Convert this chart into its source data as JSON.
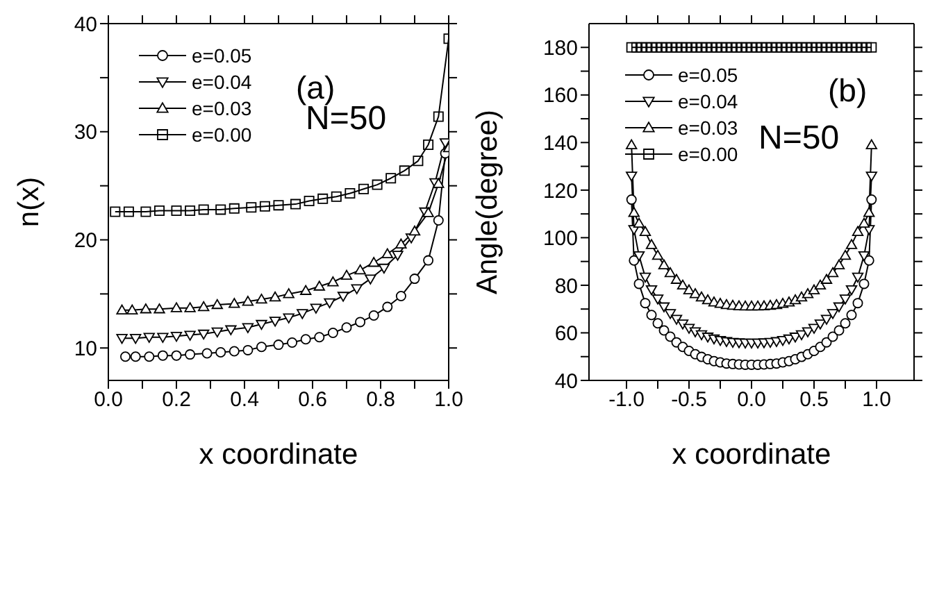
{
  "chart_data": [
    {
      "type": "line",
      "xlabel": "x coordinate",
      "ylabel": "n(x)",
      "xlim": [
        0,
        1
      ],
      "xticks": [
        {
          "value": 0,
          "label": "0.0"
        },
        {
          "value": 0.1,
          "label": null
        },
        {
          "value": 0.2,
          "label": "0.2"
        },
        {
          "value": 0.3,
          "label": null
        },
        {
          "value": 0.4,
          "label": "0.4"
        },
        {
          "value": 0.5,
          "label": null
        },
        {
          "value": 0.6,
          "label": "0.6"
        },
        {
          "value": 0.7,
          "label": null
        },
        {
          "value": 0.8,
          "label": "0.8"
        },
        {
          "value": 0.9,
          "label": null
        },
        {
          "value": 1,
          "label": "1.0"
        }
      ],
      "ylim": [
        7,
        40
      ],
      "yticks": [
        10,
        {
          "value": 15,
          "label": null
        },
        20,
        {
          "value": 25,
          "label": null
        },
        30,
        {
          "value": 35,
          "label": null
        },
        40
      ],
      "legend": "top left",
      "annotations": [
        "(a)",
        "N=50"
      ],
      "series": [
        {
          "name": "e=0.05",
          "color": "#000000",
          "marker": "circle",
          "x": [
            0.05,
            0.08,
            0.12,
            0.16,
            0.2,
            0.24,
            0.29,
            0.33,
            0.37,
            0.41,
            0.45,
            0.5,
            0.54,
            0.58,
            0.62,
            0.66,
            0.7,
            0.74,
            0.78,
            0.82,
            0.86,
            0.9,
            0.94,
            0.97,
            0.99
          ],
          "values": [
            9.2,
            9.2,
            9.2,
            9.3,
            9.3,
            9.4,
            9.5,
            9.6,
            9.7,
            9.8,
            10.1,
            10.3,
            10.5,
            10.8,
            11.0,
            11.4,
            11.9,
            12.4,
            13.0,
            13.8,
            14.8,
            16.4,
            18.1,
            21.8,
            28.0
          ]
        },
        {
          "name": "e=0.04",
          "color": "#000000",
          "marker": "triangle-down",
          "x": [
            0.04,
            0.08,
            0.12,
            0.16,
            0.2,
            0.24,
            0.28,
            0.32,
            0.36,
            0.41,
            0.45,
            0.49,
            0.53,
            0.57,
            0.61,
            0.65,
            0.69,
            0.73,
            0.77,
            0.81,
            0.85,
            0.89,
            0.93,
            0.96,
            0.99
          ],
          "values": [
            10.9,
            10.9,
            11.0,
            11.0,
            11.1,
            11.2,
            11.3,
            11.5,
            11.7,
            11.9,
            12.2,
            12.5,
            12.8,
            13.2,
            13.7,
            14.2,
            14.8,
            15.5,
            16.4,
            17.4,
            18.6,
            20.2,
            22.6,
            25.3,
            29.0
          ]
        },
        {
          "name": "e=0.03",
          "color": "#000000",
          "marker": "triangle",
          "x": [
            0.04,
            0.07,
            0.11,
            0.15,
            0.2,
            0.24,
            0.28,
            0.32,
            0.37,
            0.41,
            0.45,
            0.49,
            0.53,
            0.58,
            0.62,
            0.66,
            0.7,
            0.74,
            0.78,
            0.82,
            0.86,
            0.9,
            0.94,
            0.97,
            1.0
          ],
          "values": [
            13.5,
            13.5,
            13.6,
            13.6,
            13.7,
            13.7,
            13.8,
            14.0,
            14.1,
            14.3,
            14.5,
            14.7,
            15.0,
            15.3,
            15.7,
            16.1,
            16.7,
            17.2,
            17.9,
            18.7,
            19.6,
            20.8,
            22.5,
            25.2,
            28.5
          ]
        },
        {
          "name": "e=0.00",
          "color": "#000000",
          "marker": "square",
          "x": [
            0.02,
            0.06,
            0.11,
            0.15,
            0.2,
            0.24,
            0.28,
            0.33,
            0.37,
            0.42,
            0.46,
            0.5,
            0.55,
            0.59,
            0.63,
            0.67,
            0.71,
            0.75,
            0.79,
            0.83,
            0.87,
            0.91,
            0.94,
            0.97,
            1.0
          ],
          "values": [
            22.6,
            22.6,
            22.6,
            22.7,
            22.7,
            22.7,
            22.8,
            22.8,
            22.9,
            23.0,
            23.1,
            23.2,
            23.3,
            23.6,
            23.8,
            24.0,
            24.3,
            24.7,
            25.1,
            25.7,
            26.4,
            27.3,
            28.8,
            31.4,
            38.6
          ]
        }
      ]
    },
    {
      "type": "line",
      "xlabel": "x coordinate",
      "ylabel": "Angle(degree)",
      "xlim": [
        -1.3,
        1.3
      ],
      "xticks": [
        {
          "value": -1,
          "label": "-1.0"
        },
        {
          "value": -0.75,
          "label": null
        },
        {
          "value": -0.5,
          "label": "-0.5"
        },
        {
          "value": -0.25,
          "label": null
        },
        {
          "value": 0,
          "label": "0.0"
        },
        {
          "value": 0.25,
          "label": null
        },
        {
          "value": 0.5,
          "label": "0.5"
        },
        {
          "value": 0.75,
          "label": null
        },
        {
          "value": 1,
          "label": "1.0"
        }
      ],
      "ylim": [
        40,
        190
      ],
      "yticks": [
        40,
        {
          "value": 50,
          "label": null
        },
        60,
        {
          "value": 70,
          "label": null
        },
        80,
        {
          "value": 90,
          "label": null
        },
        100,
        {
          "value": 110,
          "label": null
        },
        120,
        {
          "value": 130,
          "label": null
        },
        140,
        {
          "value": 150,
          "label": null
        },
        160,
        {
          "value": 170,
          "label": null
        },
        180
      ],
      "legend": "top left",
      "annotations": [
        "(b)",
        "N=50"
      ],
      "series": [
        {
          "name": "e=0.05",
          "color": "#000000",
          "marker": "circle",
          "x": [
            -0.96,
            -0.94,
            -0.9,
            -0.85,
            -0.8,
            -0.75,
            -0.7,
            -0.65,
            -0.6,
            -0.55,
            -0.5,
            -0.45,
            -0.4,
            -0.35,
            -0.3,
            -0.25,
            -0.2,
            -0.15,
            -0.1,
            -0.05,
            0,
            0.05,
            0.1,
            0.15,
            0.2,
            0.25,
            0.3,
            0.35,
            0.4,
            0.45,
            0.5,
            0.55,
            0.6,
            0.65,
            0.7,
            0.75,
            0.8,
            0.85,
            0.9,
            0.94,
            0.96
          ],
          "values": [
            116,
            90.4,
            80.6,
            72.5,
            67.5,
            64,
            61,
            58.4,
            56,
            54.1,
            52.4,
            51,
            49.9,
            48.9,
            48.1,
            47.6,
            47.1,
            46.9,
            46.7,
            46.6,
            46.6,
            46.6,
            46.7,
            46.9,
            47.1,
            47.6,
            48.1,
            48.9,
            49.9,
            51,
            52.4,
            54.1,
            56,
            58.4,
            61,
            64,
            67.5,
            72.5,
            80.6,
            90.4,
            116
          ]
        },
        {
          "name": "e=0.04",
          "color": "#000000",
          "marker": "triangle-down",
          "x": [
            -0.96,
            -0.94,
            -0.9,
            -0.85,
            -0.8,
            -0.75,
            -0.7,
            -0.65,
            -0.6,
            -0.55,
            -0.5,
            -0.45,
            -0.4,
            -0.35,
            -0.3,
            -0.25,
            -0.2,
            -0.15,
            -0.1,
            -0.05,
            0,
            0.05,
            0.1,
            0.15,
            0.2,
            0.25,
            0.3,
            0.35,
            0.4,
            0.45,
            0.5,
            0.55,
            0.6,
            0.65,
            0.7,
            0.75,
            0.8,
            0.85,
            0.9,
            0.94,
            0.96
          ],
          "values": [
            126,
            103.5,
            92.5,
            83.5,
            78.2,
            74.3,
            71,
            68.2,
            65.8,
            63.8,
            62,
            60.5,
            59.3,
            58.3,
            57.5,
            56.9,
            56.4,
            56.1,
            55.9,
            55.8,
            55.8,
            55.8,
            55.9,
            56.1,
            56.4,
            56.9,
            57.5,
            58.3,
            59.3,
            60.5,
            62,
            63.8,
            65.8,
            68.2,
            71,
            74.3,
            78.2,
            83.5,
            92.5,
            103.5,
            126
          ]
        },
        {
          "name": "e=0.03",
          "color": "#000000",
          "marker": "triangle",
          "x": [
            -0.96,
            -0.94,
            -0.9,
            -0.85,
            -0.8,
            -0.75,
            -0.7,
            -0.65,
            -0.6,
            -0.55,
            -0.5,
            -0.45,
            -0.4,
            -0.35,
            -0.3,
            -0.25,
            -0.2,
            -0.15,
            -0.1,
            -0.05,
            0,
            0.05,
            0.1,
            0.15,
            0.2,
            0.25,
            0.3,
            0.35,
            0.4,
            0.45,
            0.5,
            0.55,
            0.6,
            0.65,
            0.7,
            0.75,
            0.8,
            0.85,
            0.9,
            0.94,
            0.96
          ],
          "values": [
            139,
            110.5,
            106,
            102.5,
            97,
            92.5,
            88.5,
            85.2,
            82.4,
            80,
            78,
            76.4,
            75,
            73.8,
            72.9,
            72.3,
            71.8,
            71.5,
            71.3,
            71.2,
            71.2,
            71.2,
            71.3,
            71.5,
            71.8,
            72.3,
            72.9,
            73.8,
            75,
            76.4,
            78,
            80,
            82.4,
            85.2,
            88.5,
            92.5,
            97,
            102.5,
            106,
            110.5,
            139
          ]
        },
        {
          "name": "e=0.00",
          "color": "#000000",
          "marker": "square",
          "x": [
            -0.96,
            -0.92,
            -0.88,
            -0.84,
            -0.8,
            -0.76,
            -0.72,
            -0.68,
            -0.64,
            -0.6,
            -0.56,
            -0.52,
            -0.48,
            -0.44,
            -0.4,
            -0.36,
            -0.32,
            -0.28,
            -0.24,
            -0.2,
            -0.16,
            -0.12,
            -0.08,
            -0.04,
            0,
            0.04,
            0.08,
            0.12,
            0.16,
            0.2,
            0.24,
            0.28,
            0.32,
            0.36,
            0.4,
            0.44,
            0.48,
            0.52,
            0.56,
            0.6,
            0.64,
            0.68,
            0.72,
            0.76,
            0.8,
            0.84,
            0.88,
            0.92,
            0.96
          ],
          "values": [
            180,
            180,
            180,
            180,
            180,
            180,
            180,
            180,
            180,
            180,
            180,
            180,
            180,
            180,
            180,
            180,
            180,
            180,
            180,
            180,
            180,
            180,
            180,
            180,
            180,
            180,
            180,
            180,
            180,
            180,
            180,
            180,
            180,
            180,
            180,
            180,
            180,
            180,
            180,
            180,
            180,
            180,
            180,
            180,
            180,
            180,
            180,
            180,
            180
          ]
        }
      ]
    }
  ]
}
